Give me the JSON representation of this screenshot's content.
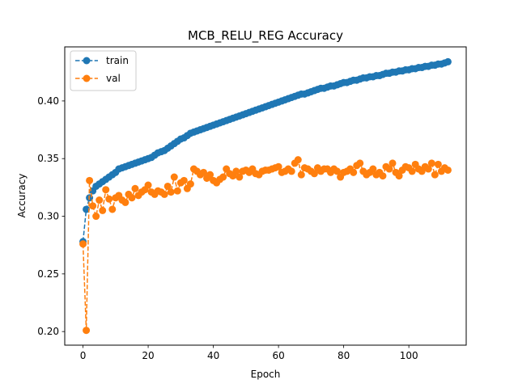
{
  "chart_data": {
    "type": "line",
    "title": "MCB_RELU_REG Accuracy",
    "xlabel": "Epoch",
    "ylabel": "Accuracy",
    "xlim": [
      -5.6,
      117.6
    ],
    "ylim": [
      0.1882,
      0.4469
    ],
    "xticks": [
      0,
      20,
      40,
      60,
      80,
      100
    ],
    "yticks": [
      0.2,
      0.25,
      0.3,
      0.35,
      0.4
    ],
    "ytick_labels": [
      "0.20",
      "0.25",
      "0.30",
      "0.35",
      "0.40"
    ],
    "grid": false,
    "legend_position": "top-left",
    "x": [
      0,
      1,
      2,
      3,
      4,
      5,
      6,
      7,
      8,
      9,
      10,
      11,
      12,
      13,
      14,
      15,
      16,
      17,
      18,
      19,
      20,
      21,
      22,
      23,
      24,
      25,
      26,
      27,
      28,
      29,
      30,
      31,
      32,
      33,
      34,
      35,
      36,
      37,
      38,
      39,
      40,
      41,
      42,
      43,
      44,
      45,
      46,
      47,
      48,
      49,
      50,
      51,
      52,
      53,
      54,
      55,
      56,
      57,
      58,
      59,
      60,
      61,
      62,
      63,
      64,
      65,
      66,
      67,
      68,
      69,
      70,
      71,
      72,
      73,
      74,
      75,
      76,
      77,
      78,
      79,
      80,
      81,
      82,
      83,
      84,
      85,
      86,
      87,
      88,
      89,
      90,
      91,
      92,
      93,
      94,
      95,
      96,
      97,
      98,
      99,
      100,
      101,
      102,
      103,
      104,
      105,
      106,
      107,
      108,
      109,
      110,
      111,
      112
    ],
    "series": [
      {
        "name": "train",
        "color": "#1f77b4",
        "values": [
          0.278,
          0.306,
          0.316,
          0.322,
          0.326,
          0.328,
          0.33,
          0.332,
          0.334,
          0.336,
          0.338,
          0.341,
          0.342,
          0.343,
          0.344,
          0.345,
          0.346,
          0.347,
          0.348,
          0.349,
          0.35,
          0.351,
          0.353,
          0.355,
          0.356,
          0.357,
          0.359,
          0.361,
          0.363,
          0.365,
          0.367,
          0.368,
          0.37,
          0.372,
          0.373,
          0.374,
          0.375,
          0.376,
          0.377,
          0.378,
          0.379,
          0.38,
          0.381,
          0.382,
          0.383,
          0.384,
          0.385,
          0.386,
          0.387,
          0.388,
          0.389,
          0.39,
          0.391,
          0.392,
          0.393,
          0.394,
          0.395,
          0.396,
          0.397,
          0.398,
          0.399,
          0.4,
          0.401,
          0.402,
          0.403,
          0.404,
          0.405,
          0.406,
          0.406,
          0.407,
          0.408,
          0.409,
          0.41,
          0.411,
          0.411,
          0.412,
          0.413,
          0.413,
          0.414,
          0.415,
          0.416,
          0.416,
          0.417,
          0.418,
          0.418,
          0.419,
          0.42,
          0.42,
          0.421,
          0.421,
          0.422,
          0.422,
          0.423,
          0.424,
          0.424,
          0.425,
          0.425,
          0.426,
          0.426,
          0.427,
          0.427,
          0.428,
          0.428,
          0.429,
          0.429,
          0.43,
          0.43,
          0.431,
          0.431,
          0.432,
          0.432,
          0.433,
          0.434
        ]
      },
      {
        "name": "val",
        "color": "#ff7f0e",
        "values": [
          0.276,
          0.201,
          0.331,
          0.309,
          0.3,
          0.314,
          0.305,
          0.323,
          0.315,
          0.306,
          0.316,
          0.318,
          0.314,
          0.312,
          0.319,
          0.316,
          0.324,
          0.318,
          0.321,
          0.323,
          0.327,
          0.321,
          0.319,
          0.322,
          0.321,
          0.319,
          0.326,
          0.321,
          0.334,
          0.322,
          0.329,
          0.331,
          0.324,
          0.328,
          0.341,
          0.339,
          0.336,
          0.338,
          0.333,
          0.336,
          0.331,
          0.329,
          0.332,
          0.334,
          0.341,
          0.337,
          0.335,
          0.339,
          0.334,
          0.339,
          0.34,
          0.338,
          0.341,
          0.337,
          0.336,
          0.339,
          0.34,
          0.34,
          0.341,
          0.342,
          0.343,
          0.338,
          0.339,
          0.341,
          0.339,
          0.346,
          0.349,
          0.336,
          0.342,
          0.341,
          0.339,
          0.337,
          0.342,
          0.339,
          0.341,
          0.341,
          0.338,
          0.341,
          0.339,
          0.334,
          0.338,
          0.339,
          0.341,
          0.338,
          0.344,
          0.346,
          0.339,
          0.336,
          0.338,
          0.341,
          0.336,
          0.338,
          0.335,
          0.343,
          0.341,
          0.346,
          0.338,
          0.335,
          0.34,
          0.343,
          0.342,
          0.339,
          0.345,
          0.341,
          0.339,
          0.343,
          0.341,
          0.346,
          0.336,
          0.345,
          0.339,
          0.342,
          0.34
        ]
      }
    ]
  }
}
